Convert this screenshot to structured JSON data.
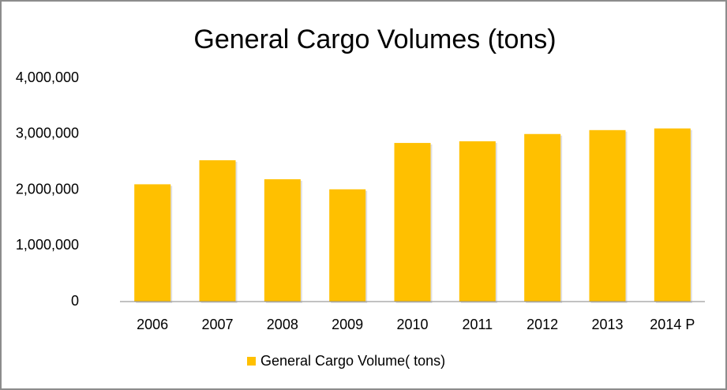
{
  "chart_data": {
    "type": "bar",
    "title": "General Cargo Volumes (tons)",
    "categories": [
      "2006",
      "2007",
      "2008",
      "2009",
      "2010",
      "2011",
      "2012",
      "2013",
      "2014 P"
    ],
    "series": [
      {
        "name": "General Cargo Volume( tons)",
        "color": "#ffc000",
        "values": [
          2100000,
          2530000,
          2190000,
          2010000,
          2840000,
          2870000,
          3000000,
          3070000,
          3100000
        ]
      }
    ],
    "ylim": [
      0,
      4000000
    ],
    "yticks": [
      0,
      {
        "value": 1000000,
        "label": "1,000,000"
      },
      {
        "value": 2000000,
        "label": "2,000,000"
      },
      {
        "value": 3000000,
        "label": "3,000,000"
      },
      {
        "value": 4000000,
        "label": "4,000,000"
      }
    ],
    "grid": false,
    "legend": "bottom"
  }
}
